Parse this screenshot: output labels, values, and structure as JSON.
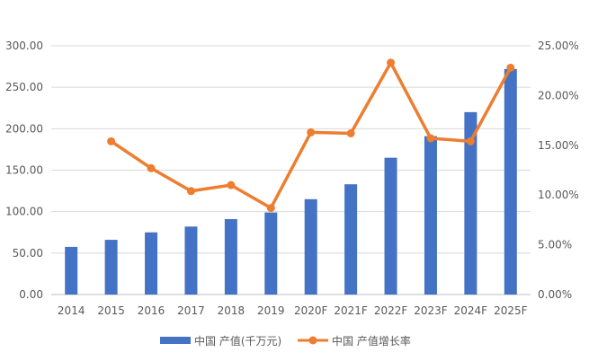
{
  "chart_data": {
    "type": "bar+line",
    "categories": [
      "2014",
      "2015",
      "2016",
      "2017",
      "2018",
      "2019",
      "2020F",
      "2021F",
      "2022F",
      "2023F",
      "2024F",
      "2025F"
    ],
    "series": [
      {
        "name": "中国 产值(千万元)",
        "type": "bar",
        "axis": "left",
        "color": "#4472C4",
        "values": [
          57.5,
          66,
          75,
          82,
          91,
          99,
          115,
          133,
          165,
          191,
          220,
          272
        ]
      },
      {
        "name": "中国 产值增长率",
        "type": "line",
        "axis": "right",
        "color": "#ED7D31",
        "values": [
          null,
          15.4,
          12.7,
          10.4,
          11.0,
          8.7,
          16.3,
          16.2,
          23.3,
          15.7,
          15.4,
          22.8
        ]
      }
    ],
    "left_axis": {
      "ylim": [
        0,
        300
      ],
      "ticks": [
        "0.00",
        "50.00",
        "100.00",
        "150.00",
        "200.00",
        "250.00",
        "300.00"
      ]
    },
    "right_axis": {
      "ylim": [
        0,
        25
      ],
      "ticks": [
        "0.00%",
        "5.00%",
        "10.00%",
        "15.00%",
        "20.00%",
        "25.00%"
      ]
    },
    "grid": true,
    "legend": "bottom"
  }
}
